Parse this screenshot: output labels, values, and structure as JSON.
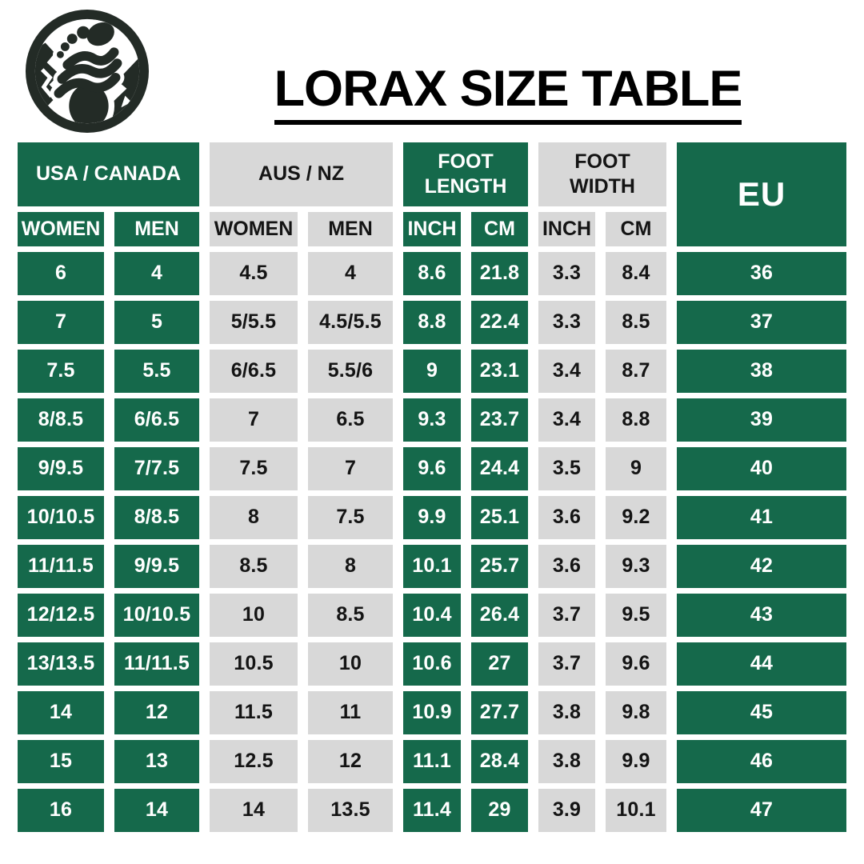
{
  "header": {
    "title": "LORAX SIZE TABLE",
    "logo_icon": "barefoot-mountain-logo"
  },
  "colors": {
    "background": "#FFFFFF",
    "green": "#15694B",
    "gray": "#D8D8D8",
    "text_on_green": "#FFFFFF",
    "text_on_gray": "#141414",
    "logo_ink": "#232B26",
    "title_color": "#000000"
  },
  "table": {
    "column_groups": [
      {
        "label": "USA / CANADA",
        "tone": "green",
        "columns": [
          "WOMEN",
          "MEN"
        ]
      },
      {
        "label": "AUS / NZ",
        "tone": "gray",
        "columns": [
          "WOMEN",
          "MEN"
        ]
      },
      {
        "label": "FOOT LENGTH",
        "tone": "green",
        "columns": [
          "INCH",
          "CM"
        ]
      },
      {
        "label": "FOOT WIDTH",
        "tone": "gray",
        "columns": [
          "INCH",
          "CM"
        ]
      },
      {
        "label": "EU",
        "tone": "green",
        "columns": []
      }
    ],
    "column_tones": [
      "green",
      "green",
      "gray",
      "gray",
      "green",
      "green",
      "gray",
      "gray",
      "green"
    ]
  },
  "chart_data": {
    "type": "table",
    "title": "LORAX SIZE TABLE",
    "columns": [
      "USA / CANADA WOMEN",
      "USA / CANADA MEN",
      "AUS / NZ WOMEN",
      "AUS / NZ MEN",
      "FOOT LENGTH INCH",
      "FOOT LENGTH CM",
      "FOOT WIDTH INCH",
      "FOOT WIDTH CM",
      "EU"
    ],
    "rows": [
      [
        "6",
        "4",
        "4.5",
        "4",
        "8.6",
        "21.8",
        "3.3",
        "8.4",
        "36"
      ],
      [
        "7",
        "5",
        "5/5.5",
        "4.5/5.5",
        "8.8",
        "22.4",
        "3.3",
        "8.5",
        "37"
      ],
      [
        "7.5",
        "5.5",
        "6/6.5",
        "5.5/6",
        "9",
        "23.1",
        "3.4",
        "8.7",
        "38"
      ],
      [
        "8/8.5",
        "6/6.5",
        "7",
        "6.5",
        "9.3",
        "23.7",
        "3.4",
        "8.8",
        "39"
      ],
      [
        "9/9.5",
        "7/7.5",
        "7.5",
        "7",
        "9.6",
        "24.4",
        "3.5",
        "9",
        "40"
      ],
      [
        "10/10.5",
        "8/8.5",
        "8",
        "7.5",
        "9.9",
        "25.1",
        "3.6",
        "9.2",
        "41"
      ],
      [
        "11/11.5",
        "9/9.5",
        "8.5",
        "8",
        "10.1",
        "25.7",
        "3.6",
        "9.3",
        "42"
      ],
      [
        "12/12.5",
        "10/10.5",
        "10",
        "8.5",
        "10.4",
        "26.4",
        "3.7",
        "9.5",
        "43"
      ],
      [
        "13/13.5",
        "11/11.5",
        "10.5",
        "10",
        "10.6",
        "27",
        "3.7",
        "9.6",
        "44"
      ],
      [
        "14",
        "12",
        "11.5",
        "11",
        "10.9",
        "27.7",
        "3.8",
        "9.8",
        "45"
      ],
      [
        "15",
        "13",
        "12.5",
        "12",
        "11.1",
        "28.4",
        "3.8",
        "9.9",
        "46"
      ],
      [
        "16",
        "14",
        "14",
        "13.5",
        "11.4",
        "29",
        "3.9",
        "10.1",
        "47"
      ]
    ]
  }
}
